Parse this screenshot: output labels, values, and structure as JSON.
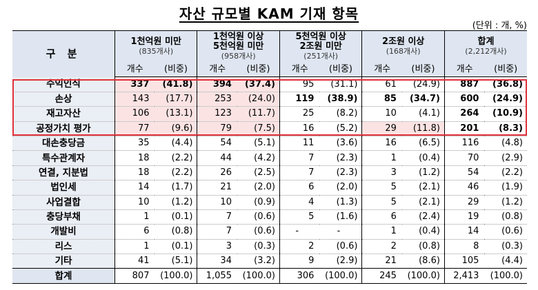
{
  "title": "자산 규모별 KAM 기재 항목",
  "unit_note": "(단위 : 개, %)",
  "header": {
    "category": "구 분",
    "groups": [
      {
        "line1": "1천억원 미만",
        "line2": "(835개사)"
      },
      {
        "line1": "1천억원 이상\n5천억원 미만",
        "line2": "(958개사)"
      },
      {
        "line1": "5천억원 이상\n2조원 미만",
        "line2": "(251개사)"
      },
      {
        "line1": "2조원 이상",
        "line2": "(168개사)"
      },
      {
        "line1": "합계",
        "line2": "(2,212개사)"
      }
    ],
    "sub_count": "개수",
    "sub_ratio": "(비중)"
  },
  "rows": [
    {
      "name": "수익인식",
      "cells": [
        "337",
        "(41.8)",
        "394",
        "(37.4)",
        "95",
        "(31.1)",
        "61",
        "(24.9)",
        "887",
        "(36.8)"
      ]
    },
    {
      "name": "손상",
      "cells": [
        "143",
        "(17.7)",
        "253",
        "(24.0)",
        "119",
        "(38.9)",
        "85",
        "(34.7)",
        "600",
        "(24.9)"
      ]
    },
    {
      "name": "재고자산",
      "cells": [
        "106",
        "(13.1)",
        "123",
        "(11.7)",
        "25",
        "(8.2)",
        "10",
        "(4.1)",
        "264",
        "(10.9)"
      ]
    },
    {
      "name": "공정가치 평가",
      "cells": [
        "77",
        "(9.6)",
        "79",
        "(7.5)",
        "16",
        "(5.2)",
        "29",
        "(11.8)",
        "201",
        "(8.3)"
      ]
    },
    {
      "name": "대손충당금",
      "cells": [
        "35",
        "(4.4)",
        "54",
        "(5.1)",
        "11",
        "(3.6)",
        "16",
        "(6.5)",
        "116",
        "(4.8)"
      ]
    },
    {
      "name": "특수관계자",
      "cells": [
        "18",
        "(2.2)",
        "44",
        "(4.2)",
        "7",
        "(2.3)",
        "1",
        "(0.4)",
        "70",
        "(2.9)"
      ]
    },
    {
      "name": "연결, 지분법",
      "cells": [
        "18",
        "(2.2)",
        "26",
        "(2.5)",
        "7",
        "(2.3)",
        "3",
        "(1.2)",
        "54",
        "(2.2)"
      ]
    },
    {
      "name": "법인세",
      "cells": [
        "14",
        "(1.7)",
        "21",
        "(2.0)",
        "6",
        "(2.0)",
        "5",
        "(2.1)",
        "46",
        "(1.9)"
      ]
    },
    {
      "name": "사업결합",
      "cells": [
        "10",
        "(1.2)",
        "10",
        "(0.9)",
        "4",
        "(1.3)",
        "5",
        "(2.1)",
        "29",
        "(1.2)"
      ]
    },
    {
      "name": "충당부채",
      "cells": [
        "1",
        "(0.1)",
        "7",
        "(0.6)",
        "5",
        "(1.6)",
        "6",
        "(2.4)",
        "19",
        "(0.8)"
      ]
    },
    {
      "name": "개발비",
      "cells": [
        "6",
        "(0.8)",
        "7",
        "(0.6)",
        "-",
        "-",
        "1",
        "(0.4)",
        "14",
        "(0.6)"
      ]
    },
    {
      "name": "리스",
      "cells": [
        "1",
        "(0.1)",
        "3",
        "(0.3)",
        "2",
        "(0.6)",
        "2",
        "(0.8)",
        "8",
        "(0.3)"
      ]
    },
    {
      "name": "기타",
      "cells": [
        "41",
        "(5.1)",
        "34",
        "(3.2)",
        "9",
        "(2.9)",
        "21",
        "(8.6)",
        "105",
        "(4.4)"
      ]
    }
  ],
  "total": {
    "name": "합계",
    "cells": [
      "807",
      "(100.0)",
      "1,055",
      "(100.0)",
      "306",
      "(100.0)",
      "245",
      "(100.0)",
      "2,413",
      "(100.0)"
    ]
  },
  "colors": {
    "header_bg": "#dfe6f1",
    "highlight_bg": "#fbe3e3",
    "red_box": "#e0303a"
  }
}
